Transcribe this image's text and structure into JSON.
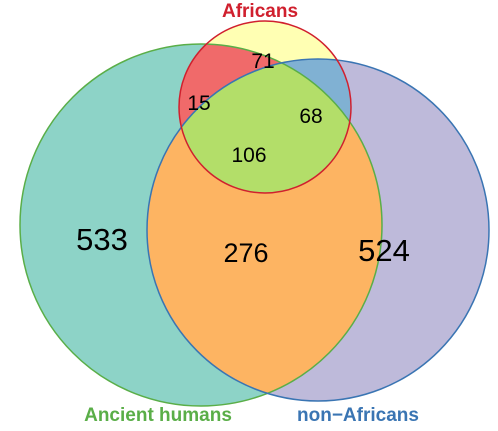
{
  "chart_data": {
    "type": "venn",
    "sets": [
      {
        "name": "Africans",
        "color": "#d0202e"
      },
      {
        "name": "Ancient humans",
        "color": "#5aae48"
      },
      {
        "name": "non−Africans",
        "color": "#3a75b3"
      }
    ],
    "regions": {
      "ancient_only": "533",
      "nonafrican_only": "524",
      "african_only": "71",
      "ancient_african": "15",
      "african_nonafrican": "68",
      "all_three": "106",
      "ancient_nonafrican": "276"
    },
    "fills": {
      "ancient_only": "#8dd3c7",
      "nonafrican_only": "#bebada",
      "african_only": "#ffffb3",
      "ancient_african": "#f06a6a",
      "african_nonafrican": "#80b1d3",
      "all_three": "#b3de69",
      "ancient_nonafrican": "#fdb462"
    }
  }
}
